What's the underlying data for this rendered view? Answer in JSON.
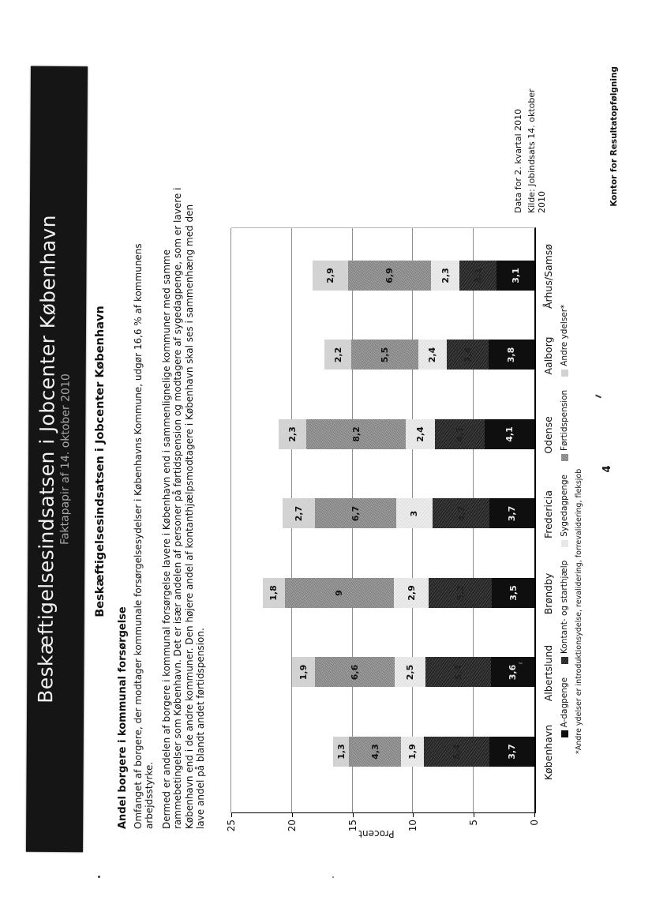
{
  "banner": {
    "title": "Beskæftigelsesindsatsen i Jobcenter København",
    "subtitle": "Faktapapir af 14. oktober 2010"
  },
  "heading": "Beskæftigelsesindsatsen i Jobcenter København",
  "section": {
    "subheading": "Andel borgere i kommunal forsørgelse",
    "para1": [
      "Omfanget af borgere, der modtager kommunale forsørgelsesydelser i Københavns Kommune, udgør 16,6 % af kommunens",
      "arbejdsstyrke."
    ],
    "para2": [
      "Dermed er andelen af borgere i kommunal forsørgelse lavere i København end i sammenlignelige kommuner med samme",
      "rammebetingelser som København. Det er især andelen af personer på førtidspension og modtagere af sygedagpenge, som er lavere i",
      "København end i de andre kommuner. Den højere andel af kontanthjælpsmodtagere i København skal ses i sammenhæng med den",
      "lave andel på blandt andet førtidspension."
    ]
  },
  "chart_data": {
    "type": "bar",
    "stacked": true,
    "title": "",
    "xlabel": "",
    "ylabel": "Procent",
    "ylim": [
      0,
      25
    ],
    "yticks": [
      0,
      5,
      10,
      15,
      20,
      25
    ],
    "grid": true,
    "legend_position": "bottom",
    "categories": [
      "København",
      "Albertslund",
      "Brøndby",
      "Fredericia",
      "Odense",
      "Aalborg",
      "Århus/Samsø"
    ],
    "series": [
      {
        "name": "A-dagpenge",
        "color": "#0f0f0f",
        "texture": "tex-black",
        "label_color": "#ebebeb",
        "values": [
          3.7,
          3.6,
          3.5,
          3.7,
          4.1,
          3.8,
          3.1
        ],
        "labels": [
          "3,7",
          "3,6",
          "3,5",
          "3,7",
          "4,1",
          "3,8",
          "3,1"
        ]
      },
      {
        "name": "Kontant- og starthjælp",
        "color": "#414141",
        "texture": "tex-darkspeckle",
        "label_color": "#212121",
        "values": [
          5.4,
          5.4,
          5.2,
          4.7,
          4.1,
          3.4,
          3.1
        ],
        "labels": [
          "5,4",
          "5,4",
          "5,2",
          "4,7",
          "4,1",
          "3,4",
          "3,1"
        ]
      },
      {
        "name": "Sygedagpenge",
        "color": "#ececec",
        "texture": "tex-lightspeckle",
        "label_color": "#111111",
        "values": [
          1.9,
          2.5,
          2.9,
          3.0,
          2.4,
          2.4,
          2.3
        ],
        "labels": [
          "1,9",
          "2,5",
          "2,9",
          "3",
          "2,4",
          "2,4",
          "2,3"
        ]
      },
      {
        "name": "Førtidspension",
        "color": "#9b9b9b",
        "texture": "tex-midspeckle",
        "label_color": "#111111",
        "values": [
          4.3,
          6.6,
          9.0,
          6.7,
          8.2,
          5.5,
          6.9
        ],
        "labels": [
          "4,3",
          "6,6",
          "9",
          "6,7",
          "8,2",
          "5,5",
          "6,9"
        ]
      },
      {
        "name": "Andre ydelser*",
        "color": "#d8d8d8",
        "texture": "tex-lightgray",
        "label_color": "#111111",
        "values": [
          1.3,
          1.9,
          1.8,
          2.7,
          2.3,
          2.2,
          2.9
        ],
        "labels": [
          "1,3",
          "1,9",
          "1,8",
          "2,7",
          "2,3",
          "2,2",
          "2,9"
        ]
      }
    ]
  },
  "footnote": "*Andre ydelser er introduktionsydelse, revalidering, forrevalidering, fleksjob",
  "notes": {
    "data_line": "Data for 2. kvartal 2010",
    "source_line": [
      "Kilde: Jobindsats 14. oktober",
      "2010"
    ]
  },
  "footer": {
    "office": "Kontor for Resultatopfølgning",
    "page": "4"
  }
}
